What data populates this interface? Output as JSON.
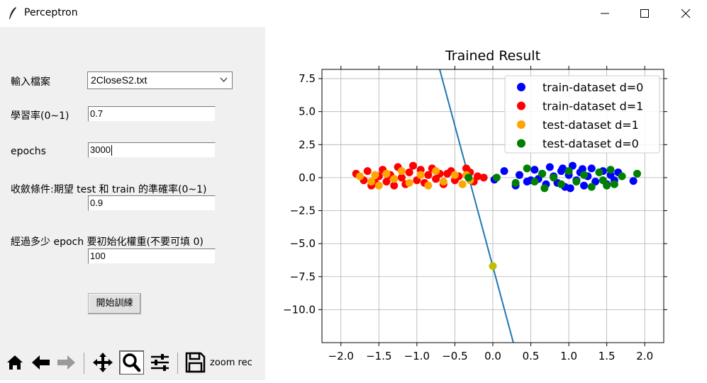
{
  "window": {
    "title": "Perceptron"
  },
  "form": {
    "file_label": "輸入檔案",
    "file_value": "2CloseS2.txt",
    "lr_label": "學習率(0~1)",
    "lr_value": "0.7",
    "epochs_label": "epochs",
    "epochs_value": "3000",
    "conv_label": "收斂條件:期望 test 和 train 的準確率(0~1)",
    "conv_value": "0.9",
    "reinit_label": "經過多少 epoch 要初始化權重(不要可填 0)",
    "reinit_value": "100",
    "start_label": "開始訓練"
  },
  "toolbar": {
    "message": "zoom rec",
    "icons": [
      "home-icon",
      "back-arrow-icon",
      "forward-arrow-icon",
      "pan-icon",
      "zoom-icon",
      "configure-subplots-icon",
      "save-icon"
    ]
  },
  "chart_data": {
    "type": "scatter",
    "title": "Trained Result",
    "xlim": [
      -2.25,
      2.25
    ],
    "ylim": [
      -12.5,
      8.2
    ],
    "xticks": [
      "−2.0",
      "−1.5",
      "−1.0",
      "−0.5",
      "0.0",
      "0.5",
      "1.0",
      "1.5",
      "2.0"
    ],
    "yticks": [
      "7.5",
      "5.0",
      "2.5",
      "0.0",
      "−2.5",
      "−5.0",
      "−7.5",
      "−10.0"
    ],
    "grid": true,
    "legend_position": "top-right",
    "line": {
      "color": "#1f77b4",
      "points": [
        [
          -0.7,
          8.2
        ],
        [
          0.27,
          -12.5
        ]
      ]
    },
    "marked_point": {
      "x": 0.0,
      "y": -6.7,
      "color": "#bfbf00"
    },
    "series": [
      {
        "name": "train-dataset d=0",
        "color": "#0000ff",
        "points": [
          [
            0.02,
            -0.15
          ],
          [
            0.15,
            0.5
          ],
          [
            0.3,
            -0.6
          ],
          [
            0.35,
            0.2
          ],
          [
            0.45,
            -0.3
          ],
          [
            0.55,
            0.6
          ],
          [
            0.6,
            -0.1
          ],
          [
            0.65,
            0.3
          ],
          [
            0.7,
            -0.5
          ],
          [
            0.75,
            0.8
          ],
          [
            0.8,
            0.1
          ],
          [
            0.85,
            -0.4
          ],
          [
            0.9,
            0.5
          ],
          [
            0.95,
            -0.7
          ],
          [
            1.0,
            0.2
          ],
          [
            1.05,
            0.9
          ],
          [
            1.1,
            -0.2
          ],
          [
            1.15,
            0.4
          ],
          [
            1.2,
            -0.6
          ],
          [
            1.25,
            0.1
          ],
          [
            1.3,
            0.7
          ],
          [
            1.35,
            -0.3
          ],
          [
            1.45,
            0.5
          ],
          [
            1.5,
            -0.5
          ],
          [
            1.55,
            0.2
          ],
          [
            1.6,
            -0.2
          ],
          [
            1.65,
            0.4
          ],
          [
            1.85,
            -0.25
          ],
          [
            0.5,
            -0.2
          ],
          [
            0.92,
            0.7
          ],
          [
            1.02,
            -0.8
          ],
          [
            1.18,
            0.65
          ]
        ]
      },
      {
        "name": "train-dataset d=1",
        "color": "#ff0000",
        "points": [
          [
            -1.8,
            0.3
          ],
          [
            -1.7,
            -0.2
          ],
          [
            -1.65,
            0.5
          ],
          [
            -1.55,
            -0.4
          ],
          [
            -1.5,
            0.1
          ],
          [
            -1.45,
            0.6
          ],
          [
            -1.4,
            -0.3
          ],
          [
            -1.35,
            0.2
          ],
          [
            -1.3,
            -0.6
          ],
          [
            -1.25,
            0.8
          ],
          [
            -1.2,
            0.0
          ],
          [
            -1.15,
            -0.5
          ],
          [
            -1.1,
            0.4
          ],
          [
            -1.05,
            0.9
          ],
          [
            -1.0,
            -0.2
          ],
          [
            -0.95,
            0.6
          ],
          [
            -0.9,
            -0.4
          ],
          [
            -0.85,
            0.2
          ],
          [
            -0.8,
            0.7
          ],
          [
            -0.75,
            -0.1
          ],
          [
            -0.7,
            0.3
          ],
          [
            -0.65,
            -0.5
          ],
          [
            -0.55,
            0.5
          ],
          [
            -0.5,
            -0.2
          ],
          [
            -0.45,
            0.1
          ],
          [
            -0.35,
            0.7
          ],
          [
            -0.3,
            0.4
          ],
          [
            -0.25,
            -0.3
          ],
          [
            -0.2,
            0.1
          ],
          [
            -0.12,
            0.0
          ],
          [
            -1.6,
            -0.6
          ],
          [
            -0.6,
            0.3
          ]
        ]
      },
      {
        "name": "test-dataset d=1",
        "color": "#ffa500",
        "points": [
          [
            -1.75,
            0.1
          ],
          [
            -1.6,
            -0.3
          ],
          [
            -1.5,
            -0.6
          ],
          [
            -1.4,
            0.3
          ],
          [
            -1.3,
            -0.1
          ],
          [
            -1.2,
            0.5
          ],
          [
            -1.1,
            -0.4
          ],
          [
            -0.95,
            0.2
          ],
          [
            -0.85,
            -0.6
          ],
          [
            -0.75,
            0.5
          ],
          [
            -0.65,
            -0.3
          ],
          [
            -0.5,
            0.2
          ],
          [
            -0.4,
            -0.5
          ],
          [
            -0.35,
            0.2
          ],
          [
            -0.3,
            -0.2
          ],
          [
            -1.55,
            0.2
          ]
        ]
      },
      {
        "name": "test-dataset d=0",
        "color": "#008000",
        "points": [
          [
            -0.32,
            0.0
          ],
          [
            0.05,
            0.0
          ],
          [
            0.3,
            -0.4
          ],
          [
            0.45,
            0.7
          ],
          [
            0.55,
            -0.3
          ],
          [
            0.65,
            0.3
          ],
          [
            0.68,
            -0.8
          ],
          [
            0.8,
            0.0
          ],
          [
            0.9,
            -0.5
          ],
          [
            1.0,
            0.5
          ],
          [
            1.1,
            -0.3
          ],
          [
            1.2,
            0.2
          ],
          [
            1.3,
            -0.7
          ],
          [
            1.4,
            0.4
          ],
          [
            1.45,
            -0.2
          ],
          [
            1.55,
            0.6
          ],
          [
            1.6,
            -0.5
          ],
          [
            1.7,
            0.1
          ],
          [
            1.9,
            0.3
          ],
          [
            1.5,
            -0.6
          ]
        ]
      }
    ]
  }
}
